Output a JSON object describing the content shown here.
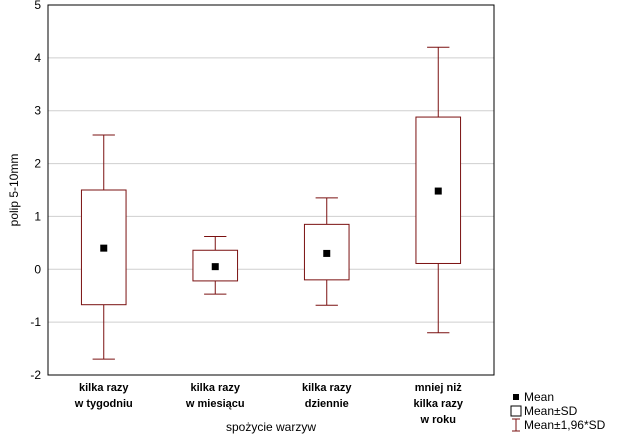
{
  "chart_data": {
    "type": "box",
    "xlabel": "spożycie warzyw",
    "ylabel": "polip 5-10mm",
    "ylim": [
      -2,
      5
    ],
    "yticks": [
      -2,
      -1,
      0,
      1,
      2,
      3,
      4,
      5
    ],
    "grid": "horizontal",
    "legend_position": "bottom-right",
    "colors": {
      "box": "#7a1010",
      "mean": "#000000",
      "grid": "#cfcfcf",
      "frame": "#000000"
    },
    "categories": [
      [
        "kilka razy",
        "w tygodniu"
      ],
      [
        "kilka razy",
        "w miesiącu"
      ],
      [
        "kilka razy",
        "dziennie"
      ],
      [
        "mniej niż",
        "kilka razy",
        "w roku"
      ]
    ],
    "series": [
      {
        "mean": 0.4,
        "sd_low": -0.67,
        "sd_high": 1.5,
        "whisker_low": -1.7,
        "whisker_high": 2.54
      },
      {
        "mean": 0.05,
        "sd_low": -0.22,
        "sd_high": 0.36,
        "whisker_low": -0.47,
        "whisker_high": 0.62
      },
      {
        "mean": 0.3,
        "sd_low": -0.2,
        "sd_high": 0.85,
        "whisker_low": -0.68,
        "whisker_high": 1.35
      },
      {
        "mean": 1.48,
        "sd_low": 0.11,
        "sd_high": 2.88,
        "whisker_low": -1.2,
        "whisker_high": 4.2
      }
    ],
    "legend": [
      {
        "symbol": "mean",
        "label": "Mean"
      },
      {
        "symbol": "box",
        "label": "Mean±SD"
      },
      {
        "symbol": "whisker",
        "label": "Mean±1,96*SD"
      }
    ]
  }
}
